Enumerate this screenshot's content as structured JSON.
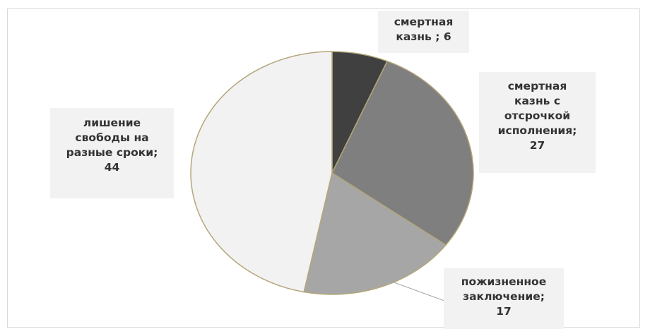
{
  "chart_data": {
    "type": "pie",
    "slices": [
      {
        "label": "смертная казнь ; 6",
        "category": "смертная казнь ",
        "value": 6,
        "color": "#404040"
      },
      {
        "label": "смертная казнь с отсрочкой исполнения; 27",
        "category": "смертная казнь с отсрочкой исполнения",
        "value": 27,
        "color": "#7f7f7f"
      },
      {
        "label": "пожизненное заключение; 17",
        "category": "пожизненное заключение",
        "value": 17,
        "color": "#a6a6a6"
      },
      {
        "label": "лишение свободы на разные сроки; 44",
        "category": "лишение свободы на разные сроки",
        "value": 44,
        "color": "#f2f2f2"
      }
    ],
    "slice_border_color": "#b4a67a",
    "leader_line_color": "#a6a6a6",
    "label_box_color": "#f2f2f2",
    "start_angle_deg": 0,
    "direction": "clockwise",
    "legend": "none"
  },
  "labels": {
    "s0": {
      "l1": "смертная",
      "l2": "казнь ; 6"
    },
    "s1": {
      "l1": "смертная",
      "l2": "казнь с",
      "l3": "отсрочкой",
      "l4": "исполнения;",
      "l5": "27"
    },
    "s2": {
      "l1": "пожизненное",
      "l2": "заключение;",
      "l3": "17"
    },
    "s3": {
      "l1": "лишение",
      "l2": "свободы на",
      "l3": "разные сроки;",
      "l4": "44"
    }
  }
}
